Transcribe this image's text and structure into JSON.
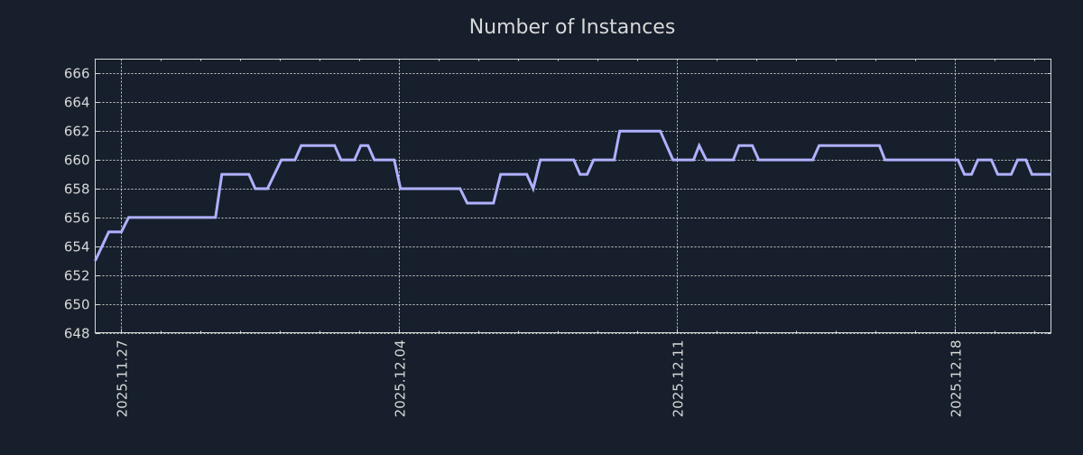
{
  "chart_data": {
    "type": "line",
    "title": "Number of Instances",
    "xlabel": "",
    "ylabel": "",
    "x_unit": "days since 2025.11.27",
    "xlim": [
      -0.64,
      23.43
    ],
    "ylim": [
      648,
      667
    ],
    "yticks": [
      648,
      650,
      652,
      654,
      656,
      658,
      660,
      662,
      664,
      666
    ],
    "xticks": [
      {
        "day": 0,
        "label": "2025.11.27"
      },
      {
        "day": 7,
        "label": "2025.12.04"
      },
      {
        "day": 14,
        "label": "2025.12.11"
      },
      {
        "day": 21,
        "label": "2025.12.18"
      }
    ],
    "grid": true,
    "line_color": "#b0b0ff",
    "series": [
      {
        "name": "Number of Instances",
        "points": [
          [
            -0.64,
            653
          ],
          [
            -0.3,
            655
          ],
          [
            0.02,
            655
          ],
          [
            0.2,
            656
          ],
          [
            2.39,
            656
          ],
          [
            2.55,
            659
          ],
          [
            3.23,
            659
          ],
          [
            3.39,
            658
          ],
          [
            3.7,
            658
          ],
          [
            4.05,
            660
          ],
          [
            4.39,
            660
          ],
          [
            4.55,
            661
          ],
          [
            5.39,
            661
          ],
          [
            5.55,
            660
          ],
          [
            5.89,
            660
          ],
          [
            6.05,
            661
          ],
          [
            6.23,
            661
          ],
          [
            6.39,
            660
          ],
          [
            6.89,
            660
          ],
          [
            7.05,
            658
          ],
          [
            8.55,
            658
          ],
          [
            8.73,
            657
          ],
          [
            9.39,
            657
          ],
          [
            9.57,
            659
          ],
          [
            10.23,
            659
          ],
          [
            10.39,
            658
          ],
          [
            10.57,
            660
          ],
          [
            11.41,
            660
          ],
          [
            11.57,
            659
          ],
          [
            11.75,
            659
          ],
          [
            11.91,
            660
          ],
          [
            12.43,
            660
          ],
          [
            12.57,
            662
          ],
          [
            13.59,
            662
          ],
          [
            13.91,
            660
          ],
          [
            14.43,
            660
          ],
          [
            14.57,
            661
          ],
          [
            14.75,
            660
          ],
          [
            15.43,
            660
          ],
          [
            15.57,
            661
          ],
          [
            15.91,
            661
          ],
          [
            16.07,
            660
          ],
          [
            17.43,
            660
          ],
          [
            17.59,
            661
          ],
          [
            19.11,
            661
          ],
          [
            19.25,
            660
          ],
          [
            21.09,
            660
          ],
          [
            21.25,
            659
          ],
          [
            21.43,
            659
          ],
          [
            21.59,
            660
          ],
          [
            21.93,
            660
          ],
          [
            22.09,
            659
          ],
          [
            22.43,
            659
          ],
          [
            22.59,
            660
          ],
          [
            22.8,
            660
          ],
          [
            22.95,
            659
          ],
          [
            23.43,
            659
          ]
        ]
      }
    ]
  }
}
